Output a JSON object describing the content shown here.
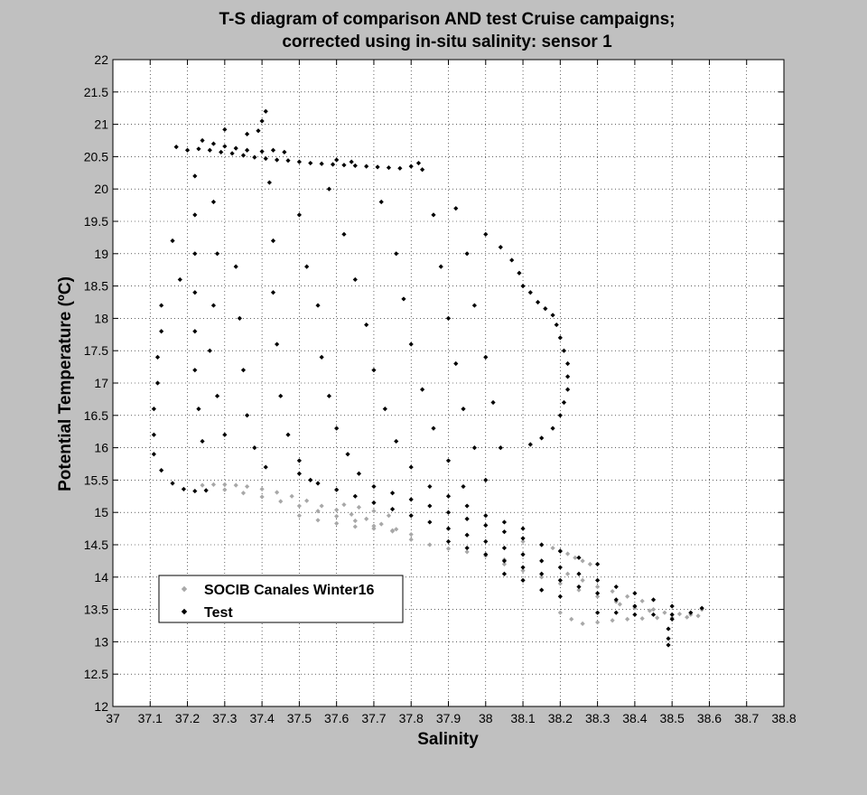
{
  "window": {
    "background": "#c0c0c0"
  },
  "chart_data": {
    "type": "scatter",
    "title": [
      "T-S diagram of comparison AND test Cruise campaigns;",
      "corrected using in-situ salinity: sensor 1"
    ],
    "xlabel": "Salinity",
    "ylabel": "Potential Temperature (ºC)",
    "xlim": [
      37,
      38.8
    ],
    "ylim": [
      12,
      22
    ],
    "xticks": [
      "37",
      "37.1",
      "37.2",
      "37.3",
      "37.4",
      "37.5",
      "37.6",
      "37.7",
      "37.8",
      "37.9",
      "38",
      "38.1",
      "38.2",
      "38.3",
      "38.4",
      "38.5",
      "38.6",
      "38.7",
      "38.8"
    ],
    "yticks": [
      "12",
      "12.5",
      "13",
      "13.5",
      "14",
      "14.5",
      "15",
      "15.5",
      "16",
      "16.5",
      "17",
      "17.5",
      "18",
      "18.5",
      "19",
      "19.5",
      "20",
      "20.5",
      "21",
      "21.5",
      "22"
    ],
    "grid": true,
    "grid_style": "dotted",
    "legend_position": "lower-left",
    "series": [
      {
        "name": "SOCIB Canales Winter16",
        "color": "#a8a8a8",
        "marker": "diamond",
        "points": [
          [
            37.24,
            15.42
          ],
          [
            37.27,
            15.43
          ],
          [
            37.3,
            15.43
          ],
          [
            37.33,
            15.42
          ],
          [
            37.36,
            15.4
          ],
          [
            37.4,
            15.36
          ],
          [
            37.44,
            15.31
          ],
          [
            37.48,
            15.25
          ],
          [
            37.52,
            15.18
          ],
          [
            37.56,
            15.1
          ],
          [
            37.6,
            15.04
          ],
          [
            37.64,
            14.97
          ],
          [
            37.68,
            14.9
          ],
          [
            37.72,
            14.82
          ],
          [
            37.76,
            14.74
          ],
          [
            37.8,
            14.66
          ],
          [
            37.3,
            15.35
          ],
          [
            37.35,
            15.3
          ],
          [
            37.4,
            15.24
          ],
          [
            37.45,
            15.17
          ],
          [
            37.5,
            15.1
          ],
          [
            37.55,
            15.02
          ],
          [
            37.6,
            14.94
          ],
          [
            37.65,
            14.87
          ],
          [
            37.7,
            14.79
          ],
          [
            37.75,
            14.72
          ],
          [
            37.5,
            14.95
          ],
          [
            37.55,
            14.88
          ],
          [
            37.6,
            14.83
          ],
          [
            37.65,
            14.78
          ],
          [
            37.7,
            14.75
          ],
          [
            37.75,
            14.71
          ],
          [
            37.62,
            15.12
          ],
          [
            37.66,
            15.08
          ],
          [
            37.7,
            15.02
          ],
          [
            37.74,
            14.95
          ],
          [
            37.8,
            14.58
          ],
          [
            37.85,
            14.5
          ],
          [
            37.9,
            14.44
          ],
          [
            37.95,
            14.39
          ],
          [
            38.0,
            14.33
          ],
          [
            38.05,
            14.27
          ],
          [
            38.1,
            14.55
          ],
          [
            38.15,
            14.5
          ],
          [
            38.18,
            14.45
          ],
          [
            38.2,
            14.41
          ],
          [
            38.22,
            14.36
          ],
          [
            38.24,
            14.3
          ],
          [
            38.26,
            14.25
          ],
          [
            38.28,
            14.2
          ],
          [
            38.05,
            14.2
          ],
          [
            38.1,
            14.1
          ],
          [
            38.15,
            14.0
          ],
          [
            38.2,
            13.9
          ],
          [
            38.25,
            13.8
          ],
          [
            38.3,
            13.7
          ],
          [
            38.35,
            13.62
          ],
          [
            38.4,
            13.55
          ],
          [
            38.45,
            13.5
          ],
          [
            38.22,
            14.05
          ],
          [
            38.26,
            13.95
          ],
          [
            38.3,
            13.85
          ],
          [
            38.34,
            13.78
          ],
          [
            38.38,
            13.7
          ],
          [
            38.42,
            13.63
          ],
          [
            38.2,
            13.45
          ],
          [
            38.23,
            13.35
          ],
          [
            38.26,
            13.28
          ],
          [
            38.3,
            13.3
          ],
          [
            38.34,
            13.33
          ],
          [
            38.38,
            13.35
          ],
          [
            38.42,
            13.36
          ],
          [
            38.46,
            13.37
          ],
          [
            38.5,
            13.37
          ],
          [
            38.54,
            13.38
          ],
          [
            38.57,
            13.4
          ],
          [
            38.58,
            13.5
          ],
          [
            38.36,
            13.58
          ],
          [
            38.4,
            13.52
          ],
          [
            38.44,
            13.48
          ],
          [
            38.48,
            13.45
          ],
          [
            38.52,
            13.43
          ],
          [
            38.55,
            13.42
          ]
        ]
      },
      {
        "name": "Test",
        "color": "#000000",
        "marker": "diamond",
        "points": [
          [
            37.17,
            20.65
          ],
          [
            37.2,
            20.6
          ],
          [
            37.23,
            20.62
          ],
          [
            37.26,
            20.6
          ],
          [
            37.29,
            20.57
          ],
          [
            37.32,
            20.55
          ],
          [
            37.35,
            20.52
          ],
          [
            37.38,
            20.49
          ],
          [
            37.41,
            20.47
          ],
          [
            37.44,
            20.45
          ],
          [
            37.47,
            20.44
          ],
          [
            37.5,
            20.42
          ],
          [
            37.53,
            20.4
          ],
          [
            37.56,
            20.39
          ],
          [
            37.59,
            20.38
          ],
          [
            37.62,
            20.37
          ],
          [
            37.65,
            20.36
          ],
          [
            37.68,
            20.35
          ],
          [
            37.71,
            20.34
          ],
          [
            37.74,
            20.33
          ],
          [
            37.77,
            20.32
          ],
          [
            37.8,
            20.35
          ],
          [
            37.82,
            20.4
          ],
          [
            37.24,
            20.75
          ],
          [
            37.27,
            20.7
          ],
          [
            37.3,
            20.66
          ],
          [
            37.33,
            20.63
          ],
          [
            37.36,
            20.6
          ],
          [
            37.4,
            20.58
          ],
          [
            37.43,
            20.6
          ],
          [
            37.46,
            20.57
          ],
          [
            37.6,
            20.45
          ],
          [
            37.64,
            20.42
          ],
          [
            37.39,
            20.9
          ],
          [
            37.4,
            21.05
          ],
          [
            37.41,
            21.2
          ],
          [
            37.36,
            20.85
          ],
          [
            37.3,
            20.92
          ],
          [
            37.22,
            20.2
          ],
          [
            37.22,
            19.6
          ],
          [
            37.22,
            19.0
          ],
          [
            37.22,
            18.4
          ],
          [
            37.22,
            17.8
          ],
          [
            37.22,
            17.2
          ],
          [
            37.23,
            16.6
          ],
          [
            37.24,
            16.1
          ],
          [
            37.27,
            19.8
          ],
          [
            37.28,
            19.0
          ],
          [
            37.27,
            18.2
          ],
          [
            37.26,
            17.5
          ],
          [
            37.28,
            16.8
          ],
          [
            37.3,
            16.2
          ],
          [
            37.33,
            18.8
          ],
          [
            37.34,
            18.0
          ],
          [
            37.35,
            17.2
          ],
          [
            37.36,
            16.5
          ],
          [
            37.38,
            16.0
          ],
          [
            37.41,
            15.7
          ],
          [
            37.42,
            20.1
          ],
          [
            37.43,
            19.2
          ],
          [
            37.43,
            18.4
          ],
          [
            37.44,
            17.6
          ],
          [
            37.45,
            16.8
          ],
          [
            37.47,
            16.2
          ],
          [
            37.5,
            15.8
          ],
          [
            37.53,
            15.5
          ],
          [
            37.5,
            19.6
          ],
          [
            37.52,
            18.8
          ],
          [
            37.55,
            18.2
          ],
          [
            37.56,
            17.4
          ],
          [
            37.58,
            16.8
          ],
          [
            37.6,
            16.3
          ],
          [
            37.63,
            15.9
          ],
          [
            37.66,
            15.6
          ],
          [
            37.58,
            20.0
          ],
          [
            37.62,
            19.3
          ],
          [
            37.65,
            18.6
          ],
          [
            37.68,
            17.9
          ],
          [
            37.7,
            17.2
          ],
          [
            37.73,
            16.6
          ],
          [
            37.76,
            16.1
          ],
          [
            37.8,
            15.7
          ],
          [
            37.72,
            19.8
          ],
          [
            37.76,
            19.0
          ],
          [
            37.78,
            18.3
          ],
          [
            37.8,
            17.6
          ],
          [
            37.83,
            16.9
          ],
          [
            37.86,
            16.3
          ],
          [
            37.9,
            15.8
          ],
          [
            37.94,
            15.4
          ],
          [
            37.83,
            20.3
          ],
          [
            37.86,
            19.6
          ],
          [
            37.88,
            18.8
          ],
          [
            37.9,
            18.0
          ],
          [
            37.92,
            17.3
          ],
          [
            37.94,
            16.6
          ],
          [
            37.97,
            16.0
          ],
          [
            38.0,
            15.5
          ],
          [
            37.92,
            19.7
          ],
          [
            37.95,
            19.0
          ],
          [
            37.97,
            18.2
          ],
          [
            38.0,
            17.4
          ],
          [
            38.02,
            16.7
          ],
          [
            38.04,
            16.0
          ],
          [
            38.0,
            19.3
          ],
          [
            38.04,
            19.1
          ],
          [
            38.07,
            18.9
          ],
          [
            38.09,
            18.7
          ],
          [
            38.1,
            18.5
          ],
          [
            38.12,
            18.4
          ],
          [
            38.14,
            18.25
          ],
          [
            38.16,
            18.15
          ],
          [
            38.18,
            18.05
          ],
          [
            38.19,
            17.9
          ],
          [
            38.2,
            17.7
          ],
          [
            38.21,
            17.5
          ],
          [
            38.22,
            17.3
          ],
          [
            38.22,
            17.1
          ],
          [
            38.22,
            16.9
          ],
          [
            38.21,
            16.7
          ],
          [
            38.2,
            16.5
          ],
          [
            38.18,
            16.3
          ],
          [
            38.15,
            16.15
          ],
          [
            38.12,
            16.05
          ],
          [
            37.13,
            18.2
          ],
          [
            37.13,
            17.8
          ],
          [
            37.12,
            17.4
          ],
          [
            37.12,
            17.0
          ],
          [
            37.11,
            16.6
          ],
          [
            37.11,
            16.2
          ],
          [
            37.11,
            15.9
          ],
          [
            37.13,
            15.65
          ],
          [
            37.16,
            15.45
          ],
          [
            37.19,
            15.36
          ],
          [
            37.22,
            15.33
          ],
          [
            37.25,
            15.34
          ],
          [
            37.18,
            18.6
          ],
          [
            37.16,
            19.2
          ],
          [
            37.5,
            15.6
          ],
          [
            37.55,
            15.45
          ],
          [
            37.6,
            15.35
          ],
          [
            37.65,
            15.25
          ],
          [
            37.7,
            15.15
          ],
          [
            37.75,
            15.05
          ],
          [
            37.8,
            14.95
          ],
          [
            37.85,
            14.85
          ],
          [
            37.9,
            14.75
          ],
          [
            37.95,
            14.65
          ],
          [
            38.0,
            14.55
          ],
          [
            38.05,
            14.45
          ],
          [
            38.1,
            14.35
          ],
          [
            38.15,
            14.25
          ],
          [
            38.2,
            14.15
          ],
          [
            38.25,
            14.05
          ],
          [
            38.3,
            13.95
          ],
          [
            38.35,
            13.85
          ],
          [
            38.4,
            13.75
          ],
          [
            38.45,
            13.65
          ],
          [
            38.5,
            13.55
          ],
          [
            37.7,
            15.4
          ],
          [
            37.75,
            15.3
          ],
          [
            37.8,
            15.2
          ],
          [
            37.85,
            15.1
          ],
          [
            37.9,
            15.0
          ],
          [
            37.95,
            14.9
          ],
          [
            38.0,
            14.8
          ],
          [
            38.05,
            14.7
          ],
          [
            38.1,
            14.6
          ],
          [
            38.15,
            14.5
          ],
          [
            38.2,
            14.4
          ],
          [
            38.25,
            14.3
          ],
          [
            38.3,
            14.2
          ],
          [
            37.85,
            15.4
          ],
          [
            37.9,
            15.25
          ],
          [
            37.95,
            15.1
          ],
          [
            38.0,
            14.95
          ],
          [
            38.05,
            14.85
          ],
          [
            38.1,
            14.75
          ],
          [
            37.9,
            14.55
          ],
          [
            37.95,
            14.45
          ],
          [
            38.0,
            14.35
          ],
          [
            38.05,
            14.25
          ],
          [
            38.1,
            14.15
          ],
          [
            38.15,
            14.05
          ],
          [
            38.2,
            13.95
          ],
          [
            38.25,
            13.85
          ],
          [
            38.3,
            13.75
          ],
          [
            38.35,
            13.65
          ],
          [
            38.4,
            13.55
          ],
          [
            38.3,
            13.45
          ],
          [
            38.35,
            13.45
          ],
          [
            38.4,
            13.42
          ],
          [
            38.45,
            13.42
          ],
          [
            38.5,
            13.42
          ],
          [
            38.55,
            13.45
          ],
          [
            38.58,
            13.52
          ],
          [
            38.5,
            13.35
          ],
          [
            38.49,
            13.2
          ],
          [
            38.49,
            13.05
          ],
          [
            38.49,
            12.95
          ],
          [
            38.2,
            13.7
          ],
          [
            38.15,
            13.8
          ],
          [
            38.1,
            13.95
          ],
          [
            38.05,
            14.05
          ]
        ]
      }
    ]
  }
}
